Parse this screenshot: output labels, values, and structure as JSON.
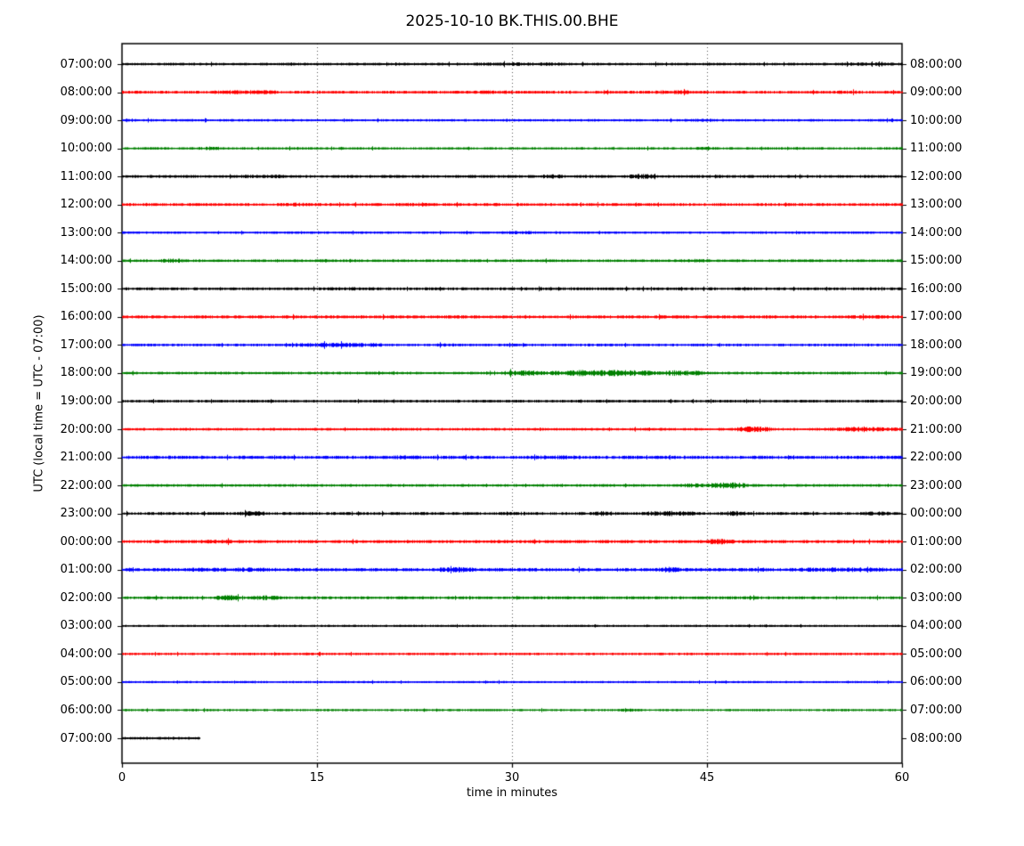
{
  "chart_data": {
    "type": "line",
    "subtype": "seismogram-helicorder-dayplot",
    "title": "2025-10-10 BK.THIS.00.BHE",
    "xlabel": "time in minutes",
    "ylabel": "UTC (local time = UTC - 07:00)",
    "xlim": [
      0,
      60
    ],
    "x_ticks": [
      0,
      15,
      30,
      45,
      60
    ],
    "grid": {
      "vertical_dotted_at_minutes": [
        15,
        30,
        45
      ]
    },
    "minutes_per_line": 60,
    "trace_color_cycle": [
      "#000000",
      "#ff0000",
      "#0000ff",
      "#008000"
    ],
    "rows": [
      {
        "utc_start": "07:00:00",
        "utc_end": "08:00:00",
        "color": "#000000",
        "duration_min": 60,
        "base_amp": 1.2,
        "bursts": [
          [
            27,
            34,
            1.6
          ],
          [
            55,
            60,
            1.5
          ]
        ]
      },
      {
        "utc_start": "08:00:00",
        "utc_end": "09:00:00",
        "color": "#ff0000",
        "duration_min": 60,
        "base_amp": 1.3,
        "bursts": [
          [
            7,
            12,
            1.9
          ],
          [
            27,
            30,
            1.7
          ],
          [
            41,
            44,
            1.9
          ],
          [
            55,
            57,
            1.6
          ]
        ]
      },
      {
        "utc_start": "09:00:00",
        "utc_end": "10:00:00",
        "color": "#0000ff",
        "duration_min": 60,
        "base_amp": 1.1,
        "bursts": [
          [
            43,
            46,
            1.5
          ]
        ]
      },
      {
        "utc_start": "10:00:00",
        "utc_end": "11:00:00",
        "color": "#008000",
        "duration_min": 60,
        "base_amp": 1.1,
        "bursts": [
          [
            6,
            8,
            1.5
          ],
          [
            44,
            46,
            1.5
          ]
        ]
      },
      {
        "utc_start": "11:00:00",
        "utc_end": "12:00:00",
        "color": "#000000",
        "duration_min": 60,
        "base_amp": 1.3,
        "bursts": [
          [
            9,
            14,
            1.7
          ],
          [
            32,
            34,
            2.0
          ],
          [
            39,
            41,
            2.3
          ]
        ]
      },
      {
        "utc_start": "12:00:00",
        "utc_end": "13:00:00",
        "color": "#ff0000",
        "duration_min": 60,
        "base_amp": 1.3,
        "bursts": [
          [
            12,
            15,
            1.7
          ],
          [
            21,
            24,
            1.6
          ]
        ]
      },
      {
        "utc_start": "13:00:00",
        "utc_end": "14:00:00",
        "color": "#0000ff",
        "duration_min": 60,
        "base_amp": 1.1,
        "bursts": [
          [
            29,
            32,
            1.5
          ]
        ]
      },
      {
        "utc_start": "14:00:00",
        "utc_end": "15:00:00",
        "color": "#008000",
        "duration_min": 60,
        "base_amp": 1.2,
        "bursts": [
          [
            3,
            5,
            2.0
          ],
          [
            14,
            16,
            1.6
          ],
          [
            43,
            45,
            1.7
          ]
        ]
      },
      {
        "utc_start": "15:00:00",
        "utc_end": "16:00:00",
        "color": "#000000",
        "duration_min": 60,
        "base_amp": 1.3,
        "bursts": [
          [
            16,
            19,
            1.6
          ],
          [
            29,
            32,
            1.5
          ]
        ]
      },
      {
        "utc_start": "16:00:00",
        "utc_end": "17:00:00",
        "color": "#ff0000",
        "duration_min": 60,
        "base_amp": 1.4,
        "bursts": [
          [
            24,
            27,
            1.6
          ],
          [
            56,
            59,
            1.6
          ]
        ]
      },
      {
        "utc_start": "17:00:00",
        "utc_end": "18:00:00",
        "color": "#0000ff",
        "duration_min": 60,
        "base_amp": 1.2,
        "bursts": [
          [
            13,
            20,
            2.1
          ],
          [
            24,
            26,
            1.7
          ]
        ]
      },
      {
        "utc_start": "18:00:00",
        "utc_end": "19:00:00",
        "color": "#008000",
        "duration_min": 60,
        "base_amp": 1.2,
        "bursts": [
          [
            29,
            33,
            2.4
          ],
          [
            33,
            41,
            3.0
          ],
          [
            41,
            45,
            2.4
          ]
        ]
      },
      {
        "utc_start": "19:00:00",
        "utc_end": "20:00:00",
        "color": "#000000",
        "duration_min": 60,
        "base_amp": 1.2,
        "bursts": []
      },
      {
        "utc_start": "20:00:00",
        "utc_end": "21:00:00",
        "color": "#ff0000",
        "duration_min": 60,
        "base_amp": 1.2,
        "bursts": [
          [
            47,
            50,
            2.6
          ],
          [
            54,
            60,
            2.0
          ],
          [
            56,
            58,
            2.6
          ]
        ]
      },
      {
        "utc_start": "21:00:00",
        "utc_end": "22:00:00",
        "color": "#0000ff",
        "duration_min": 60,
        "base_amp": 1.5,
        "bursts": [
          [
            20,
            23,
            1.8
          ],
          [
            31,
            35,
            1.8
          ]
        ]
      },
      {
        "utc_start": "22:00:00",
        "utc_end": "23:00:00",
        "color": "#008000",
        "duration_min": 60,
        "base_amp": 1.2,
        "bursts": [
          [
            43,
            45,
            2.0
          ],
          [
            45,
            48,
            3.0
          ]
        ]
      },
      {
        "utc_start": "23:00:00",
        "utc_end": "00:00:00",
        "color": "#000000",
        "duration_min": 60,
        "base_amp": 1.3,
        "bursts": [
          [
            9,
            11,
            2.2
          ],
          [
            29,
            31,
            1.8
          ],
          [
            36,
            38,
            2.2
          ],
          [
            40,
            44,
            2.4
          ],
          [
            46,
            48,
            2.2
          ],
          [
            57,
            59,
            1.9
          ]
        ]
      },
      {
        "utc_start": "00:00:00",
        "utc_end": "01:00:00",
        "color": "#ff0000",
        "duration_min": 60,
        "base_amp": 1.4,
        "bursts": [
          [
            6,
            9,
            1.8
          ],
          [
            45,
            47,
            2.7
          ]
        ]
      },
      {
        "utc_start": "01:00:00",
        "utc_end": "02:00:00",
        "color": "#0000ff",
        "duration_min": 60,
        "base_amp": 1.5,
        "bursts": [
          [
            5,
            12,
            2.0
          ],
          [
            24,
            27,
            2.6
          ],
          [
            41,
            43,
            2.6
          ],
          [
            52,
            59,
            2.1
          ]
        ]
      },
      {
        "utc_start": "02:00:00",
        "utc_end": "03:00:00",
        "color": "#008000",
        "duration_min": 60,
        "base_amp": 1.3,
        "bursts": [
          [
            7,
            9,
            2.5
          ],
          [
            10,
            12,
            2.2
          ]
        ]
      },
      {
        "utc_start": "03:00:00",
        "utc_end": "04:00:00",
        "color": "#000000",
        "duration_min": 60,
        "base_amp": 1.0,
        "bursts": []
      },
      {
        "utc_start": "04:00:00",
        "utc_end": "05:00:00",
        "color": "#ff0000",
        "duration_min": 60,
        "base_amp": 1.1,
        "bursts": []
      },
      {
        "utc_start": "05:00:00",
        "utc_end": "06:00:00",
        "color": "#0000ff",
        "duration_min": 60,
        "base_amp": 1.0,
        "bursts": []
      },
      {
        "utc_start": "06:00:00",
        "utc_end": "07:00:00",
        "color": "#008000",
        "duration_min": 60,
        "base_amp": 1.0,
        "bursts": [
          [
            38,
            40,
            1.4
          ]
        ]
      },
      {
        "utc_start": "07:00:00",
        "utc_end": "08:00:00",
        "color": "#000000",
        "duration_min": 6,
        "base_amp": 1.2,
        "bursts": []
      }
    ]
  }
}
